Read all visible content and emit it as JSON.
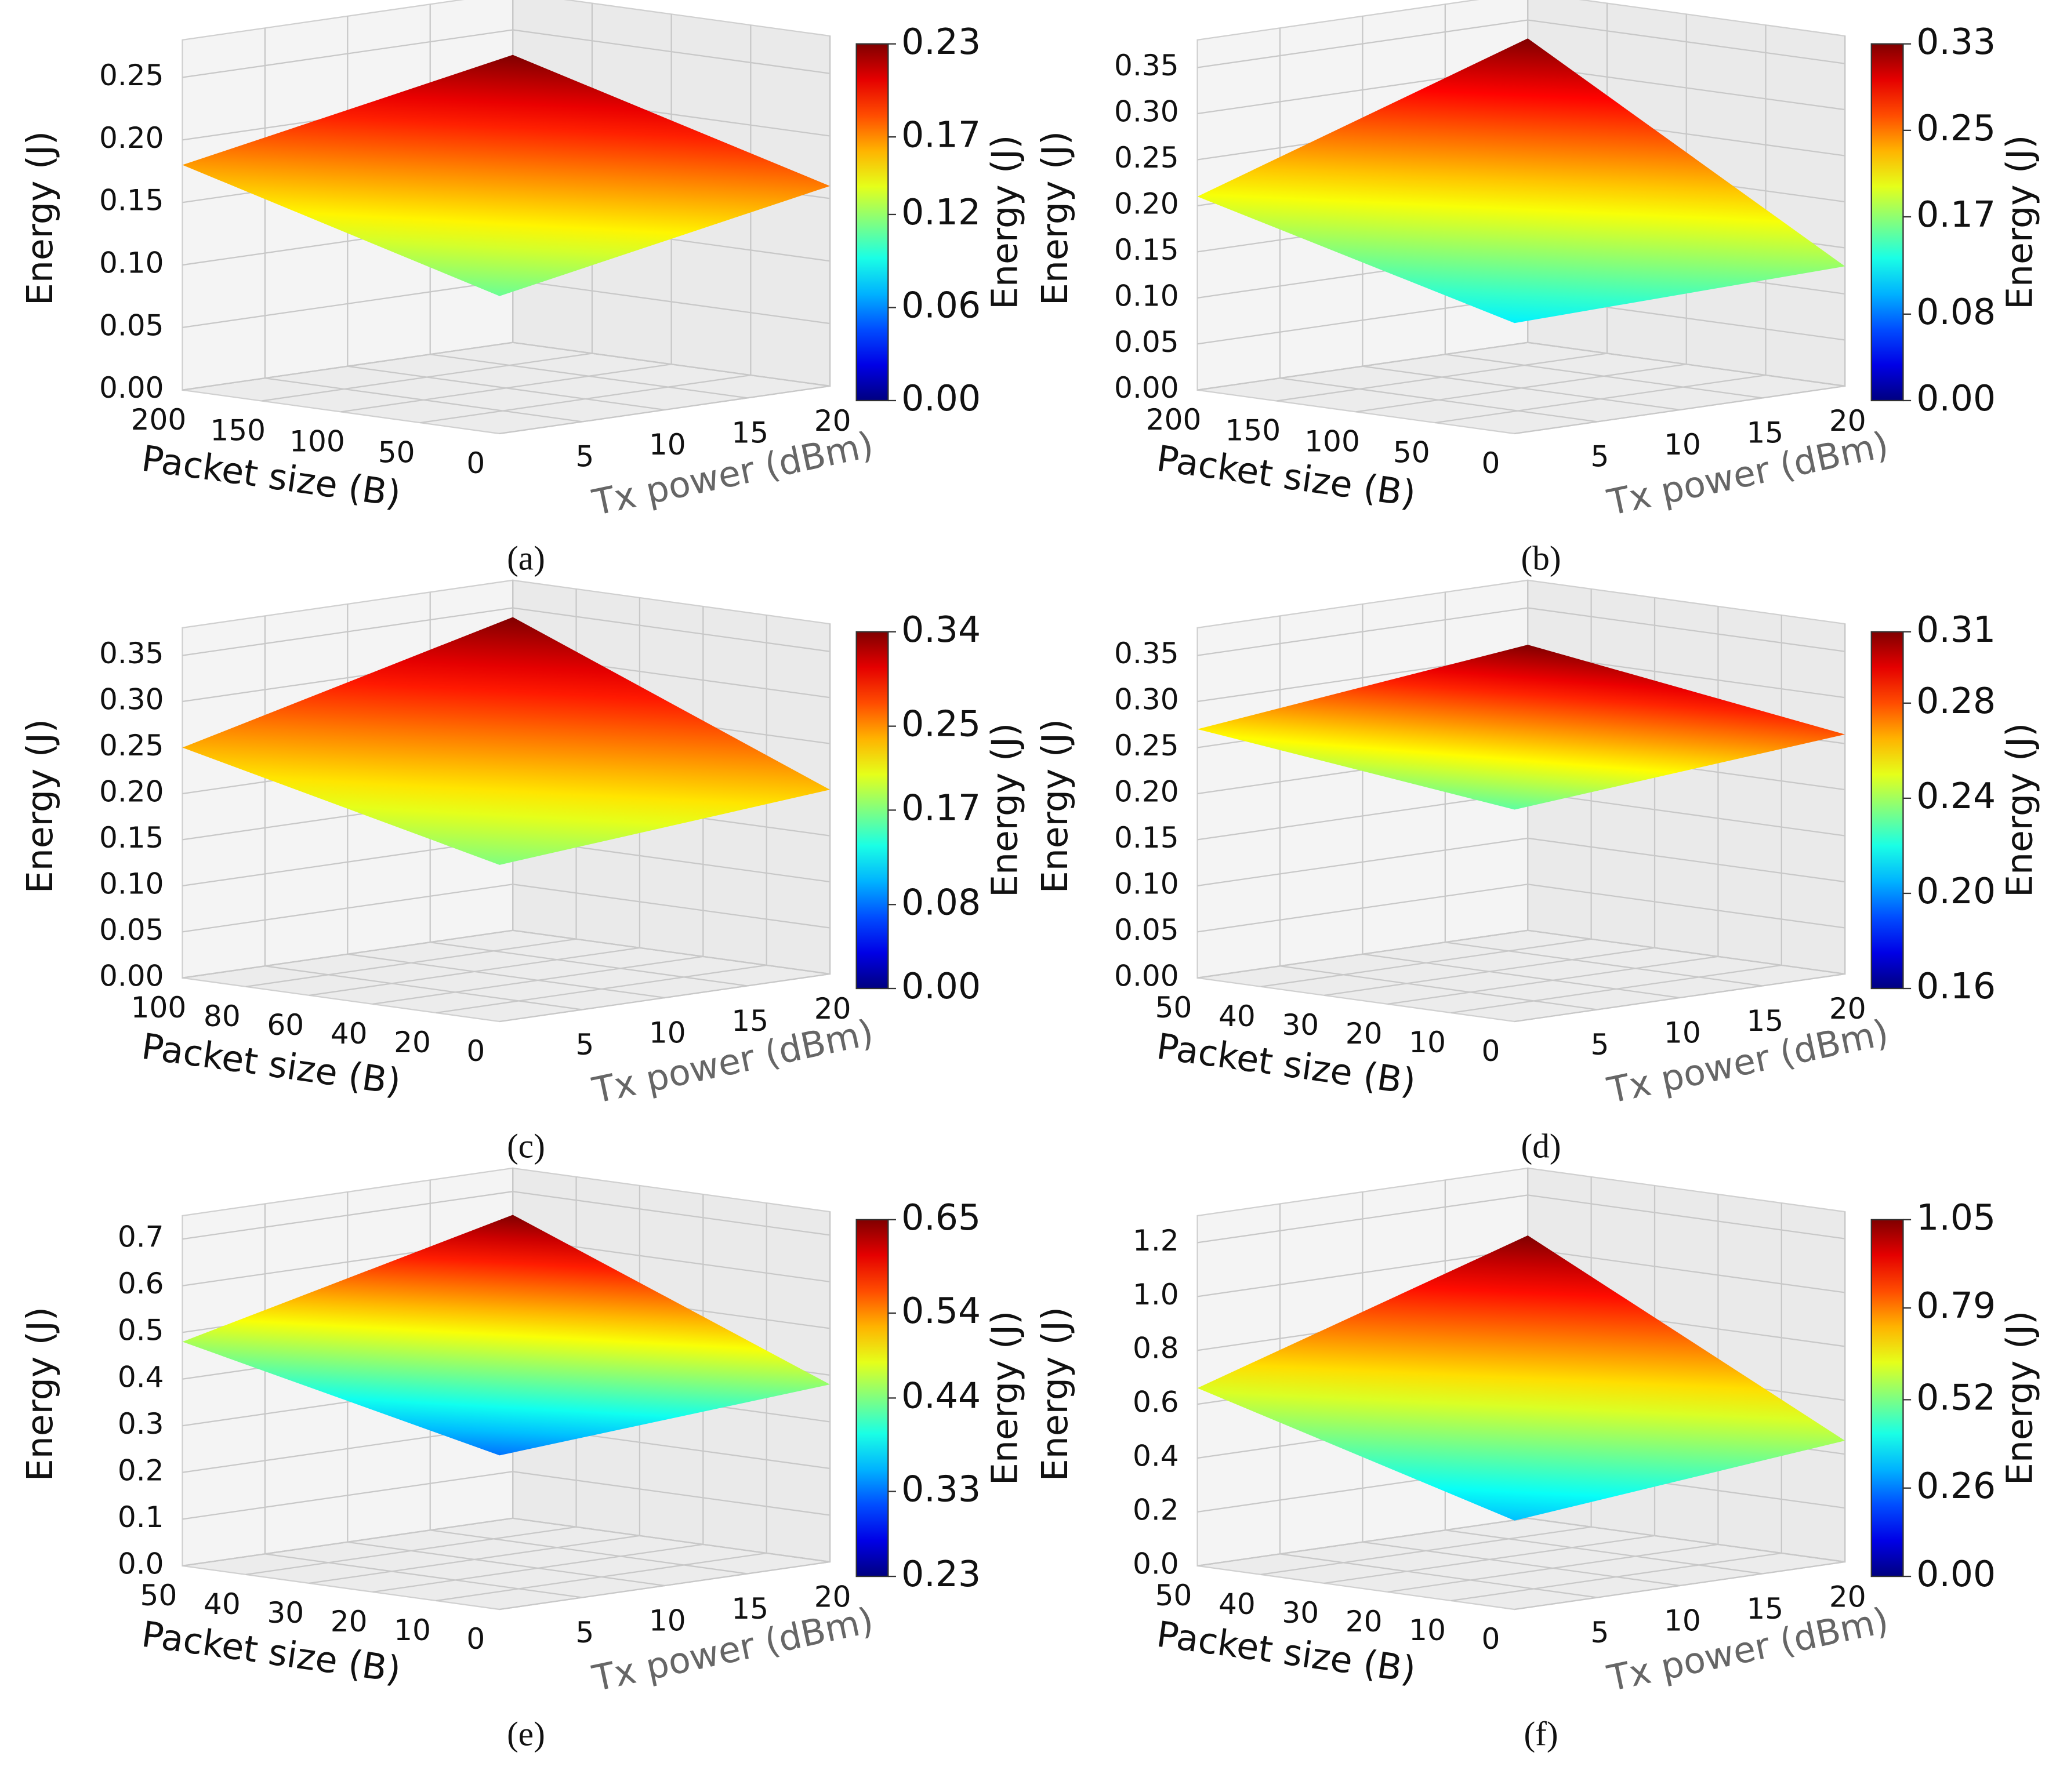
{
  "chart_data": [
    {
      "type": "surface",
      "panel": "(a)",
      "colormap": "jet",
      "xlabel": "Tx power (dBm)",
      "ylabel": "Packet size (B)",
      "zlabel": "Energy (J)",
      "colorbar_label": "Energy (J)",
      "x": [
        0,
        20
      ],
      "y": [
        0,
        200
      ],
      "z": [
        [
          0.11,
          0.16
        ],
        [
          0.18,
          0.23
        ]
      ],
      "xlim": [
        0,
        20
      ],
      "xticks": [
        5,
        10,
        15,
        20
      ],
      "ylim": [
        0,
        200
      ],
      "yticks": [
        0,
        50,
        100,
        150,
        200
      ],
      "zlim": [
        0,
        0.28
      ],
      "zticks": [
        {
          "value": 0,
          "label": "0.00"
        },
        0.05,
        {
          "value": 0.1,
          "label": "0.10"
        },
        0.15,
        {
          "value": 0.2,
          "label": "0.20"
        },
        0.25
      ],
      "clim": [
        0,
        0.23
      ],
      "cticks": [
        {
          "value": 0,
          "label": "0.00"
        },
        0.06,
        0.12,
        0.17,
        0.23
      ]
    },
    {
      "type": "surface",
      "panel": "(b)",
      "colormap": "jet",
      "xlabel": "Tx power (dBm)",
      "ylabel": "Packet size (B)",
      "zlabel": "Energy (J)",
      "colorbar_label": "Energy (J)",
      "x": [
        0,
        20
      ],
      "y": [
        0,
        200
      ],
      "z": [
        [
          0.12,
          0.13
        ],
        [
          0.21,
          0.33
        ]
      ],
      "xlim": [
        0,
        20
      ],
      "xticks": [
        5,
        10,
        15,
        20
      ],
      "ylim": [
        0,
        200
      ],
      "yticks": [
        0,
        50,
        100,
        150,
        200
      ],
      "zlim": [
        0,
        0.38
      ],
      "zticks": [
        {
          "value": 0,
          "label": "0.00"
        },
        0.05,
        {
          "value": 0.1,
          "label": "0.10"
        },
        0.15,
        {
          "value": 0.2,
          "label": "0.20"
        },
        0.25,
        {
          "value": 0.3,
          "label": "0.30"
        },
        0.35
      ],
      "clim": [
        0,
        0.33
      ],
      "cticks": [
        {
          "value": 0,
          "label": "0.00"
        },
        0.08,
        0.17,
        0.25,
        0.33
      ]
    },
    {
      "type": "surface",
      "panel": "(c)",
      "colormap": "jet",
      "xlabel": "Tx power (dBm)",
      "ylabel": "Packet size (B)",
      "zlabel": "Energy (J)",
      "colorbar_label": "Energy (J)",
      "x": [
        0,
        20
      ],
      "y": [
        0,
        100
      ],
      "z": [
        [
          0.17,
          0.2
        ],
        [
          0.25,
          0.34
        ]
      ],
      "xlim": [
        0,
        20
      ],
      "xticks": [
        5,
        10,
        15,
        20
      ],
      "ylim": [
        0,
        100
      ],
      "yticks": [
        0,
        20,
        40,
        60,
        80,
        100
      ],
      "zlim": [
        0,
        0.38
      ],
      "zticks": [
        {
          "value": 0,
          "label": "0.00"
        },
        0.05,
        {
          "value": 0.1,
          "label": "0.10"
        },
        0.15,
        {
          "value": 0.2,
          "label": "0.20"
        },
        0.25,
        {
          "value": 0.3,
          "label": "0.30"
        },
        0.35
      ],
      "clim": [
        0,
        0.34
      ],
      "cticks": [
        {
          "value": 0,
          "label": "0.00"
        },
        0.08,
        0.17,
        0.25,
        0.34
      ]
    },
    {
      "type": "surface",
      "panel": "(d)",
      "colormap": "jet",
      "xlabel": "Tx power (dBm)",
      "ylabel": "Packet size (B)",
      "zlabel": "Energy (J)",
      "colorbar_label": "Energy (J)",
      "x": [
        0,
        20
      ],
      "y": [
        0,
        50
      ],
      "z": [
        [
          0.23,
          0.26
        ],
        [
          0.27,
          0.31
        ]
      ],
      "xlim": [
        0,
        20
      ],
      "xticks": [
        5,
        10,
        15,
        20
      ],
      "ylim": [
        0,
        50
      ],
      "yticks": [
        0,
        10,
        20,
        30,
        40,
        50
      ],
      "zlim": [
        0,
        0.38
      ],
      "zticks": [
        {
          "value": 0,
          "label": "0.00"
        },
        0.05,
        {
          "value": 0.1,
          "label": "0.10"
        },
        0.15,
        {
          "value": 0.2,
          "label": "0.20"
        },
        0.25,
        {
          "value": 0.3,
          "label": "0.30"
        },
        0.35
      ],
      "clim": [
        0.16,
        0.31
      ],
      "cticks": [
        0.16,
        {
          "value": 0.2,
          "label": "0.20"
        },
        0.24,
        0.28,
        0.31
      ]
    },
    {
      "type": "surface",
      "panel": "(e)",
      "colormap": "jet",
      "xlabel": "Tx power (dBm)",
      "ylabel": "Packet size (B)",
      "zlabel": "Energy (J)",
      "colorbar_label": "Energy (J)",
      "x": [
        0,
        20
      ],
      "y": [
        0,
        50
      ],
      "z": [
        [
          0.33,
          0.38
        ],
        [
          0.48,
          0.65
        ]
      ],
      "xlim": [
        0,
        20
      ],
      "xticks": [
        5,
        10,
        15,
        20
      ],
      "ylim": [
        0,
        50
      ],
      "yticks": [
        0,
        10,
        20,
        30,
        40,
        50
      ],
      "zlim": [
        0,
        0.75
      ],
      "zticks": [
        {
          "value": 0,
          "label": "0.0"
        },
        0.1,
        0.2,
        0.3,
        0.4,
        0.5,
        0.6,
        0.7
      ],
      "clim": [
        0.23,
        0.65
      ],
      "cticks": [
        0.23,
        0.33,
        0.44,
        0.54,
        0.65
      ]
    },
    {
      "type": "surface",
      "panel": "(f)",
      "colormap": "jet",
      "xlabel": "Tx power (dBm)",
      "ylabel": "Packet size (B)",
      "zlabel": "Energy (J)",
      "colorbar_label": "Energy (J)",
      "x": [
        0,
        20
      ],
      "y": [
        0,
        50
      ],
      "z": [
        [
          0.33,
          0.45
        ],
        [
          0.66,
          1.05
        ]
      ],
      "xlim": [
        0,
        20
      ],
      "xticks": [
        5,
        10,
        15,
        20
      ],
      "ylim": [
        0,
        50
      ],
      "yticks": [
        0,
        10,
        20,
        30,
        40,
        50
      ],
      "zlim": [
        0,
        1.3
      ],
      "zticks": [
        {
          "value": 0,
          "label": "0.0"
        },
        0.2,
        0.4,
        0.6,
        0.8,
        {
          "value": 1,
          "label": "1.0"
        },
        1.2
      ],
      "clim": [
        0,
        1.05
      ],
      "cticks": [
        {
          "value": 0,
          "label": "0.00"
        },
        0.26,
        0.52,
        0.79,
        1.05
      ]
    }
  ]
}
